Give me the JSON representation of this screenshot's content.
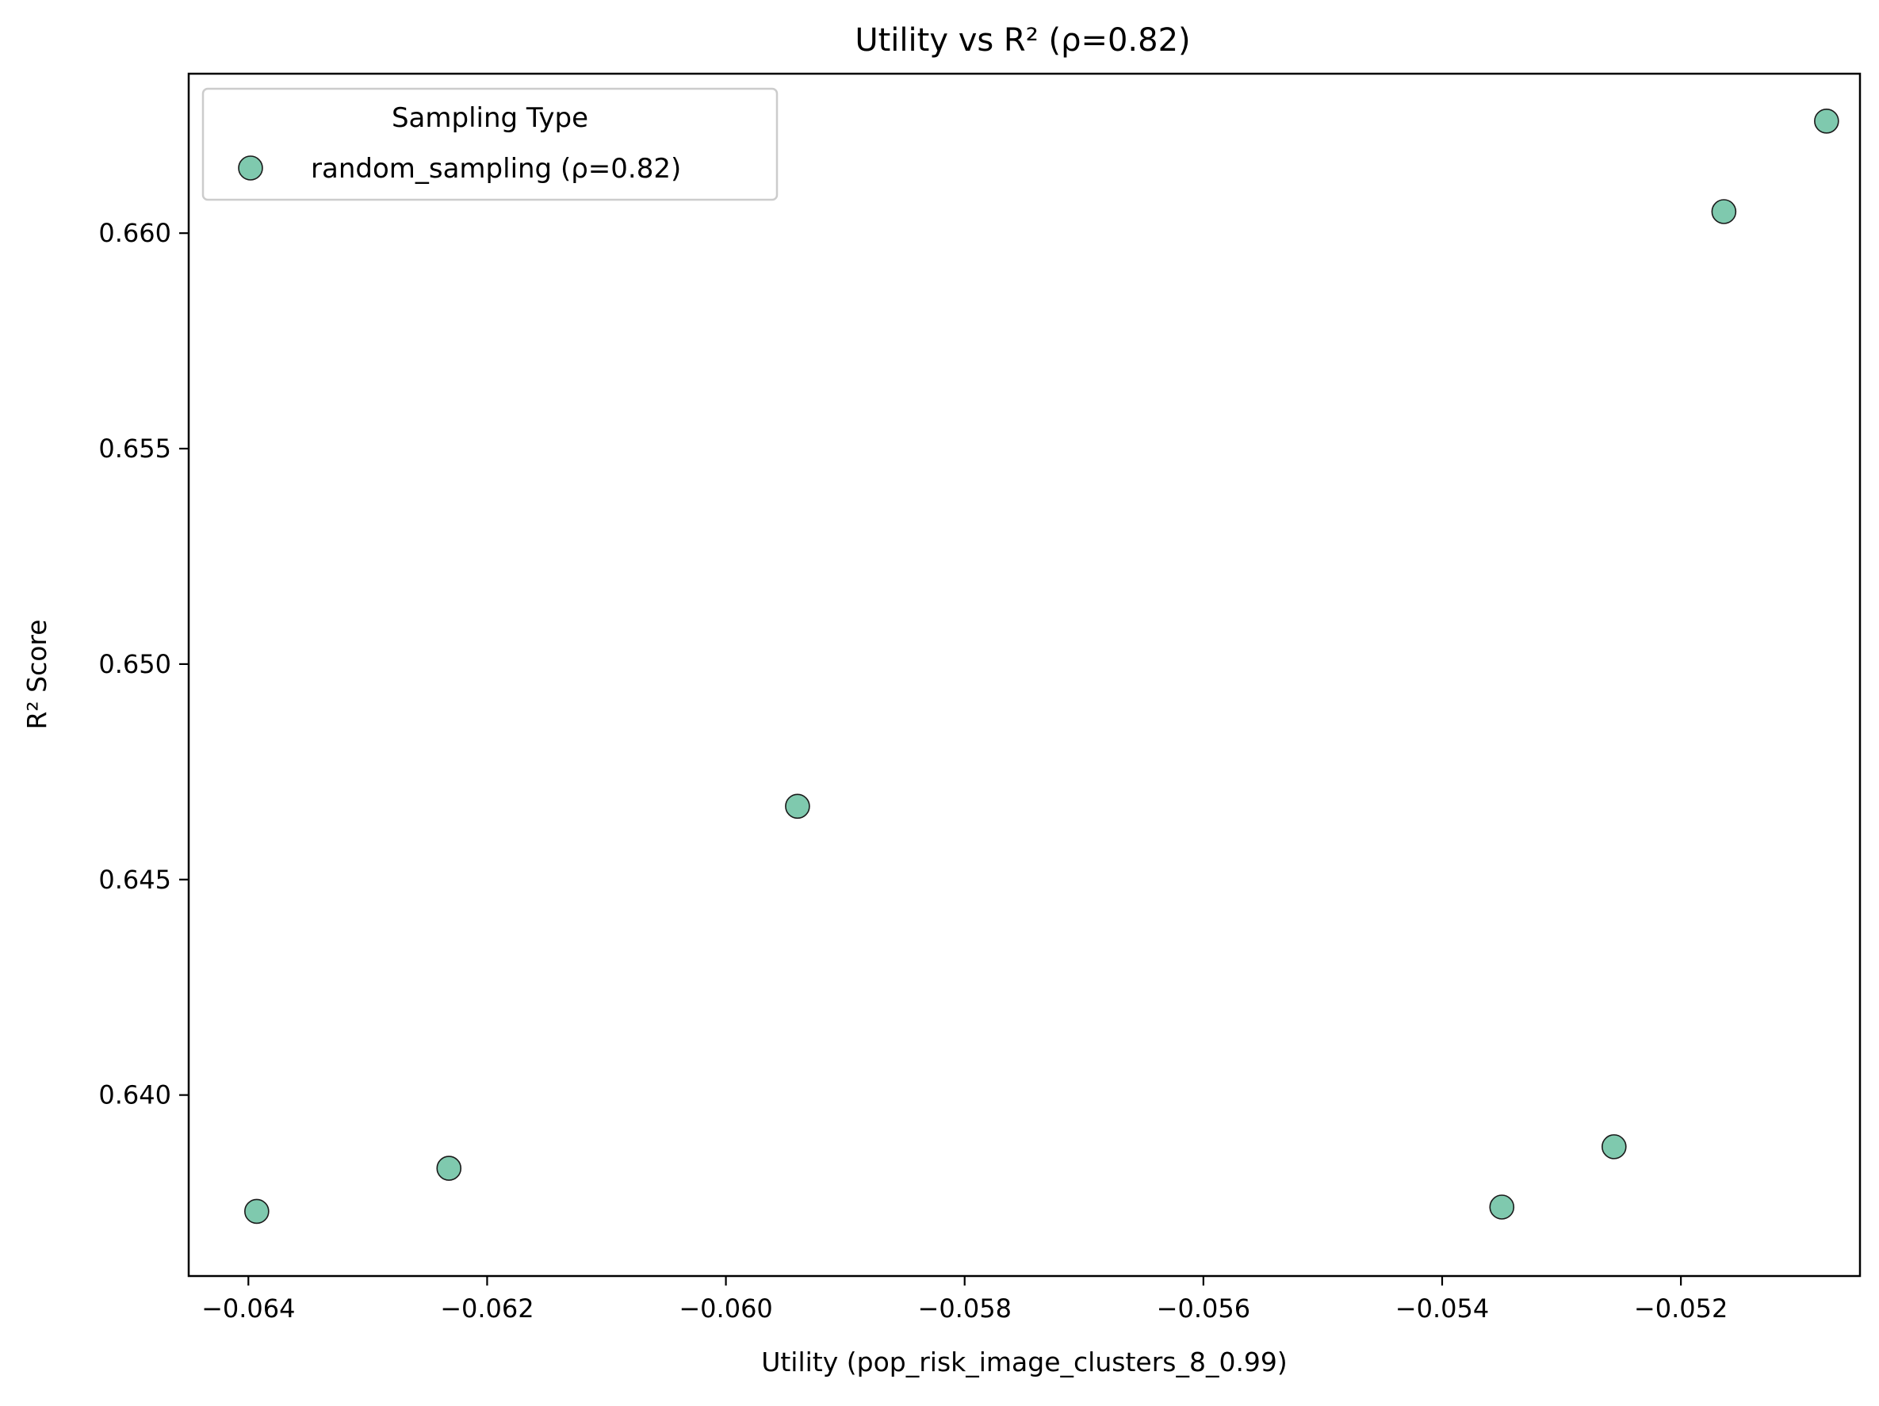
{
  "chart_data": {
    "type": "scatter",
    "title": "Utility vs R² (ρ=0.82)",
    "xlabel": "Utility (pop_risk_image_clusters_8_0.99)",
    "ylabel": "R² Score",
    "xlim": [
      -0.0645,
      -0.0505
    ],
    "ylim": [
      0.6358,
      0.6637
    ],
    "x_ticks": [
      -0.064,
      -0.062,
      -0.06,
      -0.058,
      -0.056,
      -0.054,
      -0.052
    ],
    "x_tick_labels": [
      "−0.064",
      "−0.062",
      "−0.060",
      "−0.058",
      "−0.056",
      "−0.054",
      "−0.052"
    ],
    "y_ticks": [
      0.64,
      0.645,
      0.65,
      0.655,
      0.66
    ],
    "y_tick_labels": [
      "0.640",
      "0.645",
      "0.650",
      "0.655",
      "0.660"
    ],
    "grid": false,
    "legend": {
      "title": "Sampling Type",
      "placement": "top-left"
    },
    "series": [
      {
        "name": "random_sampling (ρ=0.82)",
        "color": "#7fc9ae",
        "edge_color": "#1a1a1a",
        "points": [
          {
            "x": -0.06393,
            "y": 0.6373
          },
          {
            "x": -0.06232,
            "y": 0.6383
          },
          {
            "x": -0.0594,
            "y": 0.6467
          },
          {
            "x": -0.0535,
            "y": 0.6374
          },
          {
            "x": -0.05256,
            "y": 0.6388
          },
          {
            "x": -0.05164,
            "y": 0.6605
          },
          {
            "x": -0.05078,
            "y": 0.6626
          }
        ]
      }
    ]
  }
}
